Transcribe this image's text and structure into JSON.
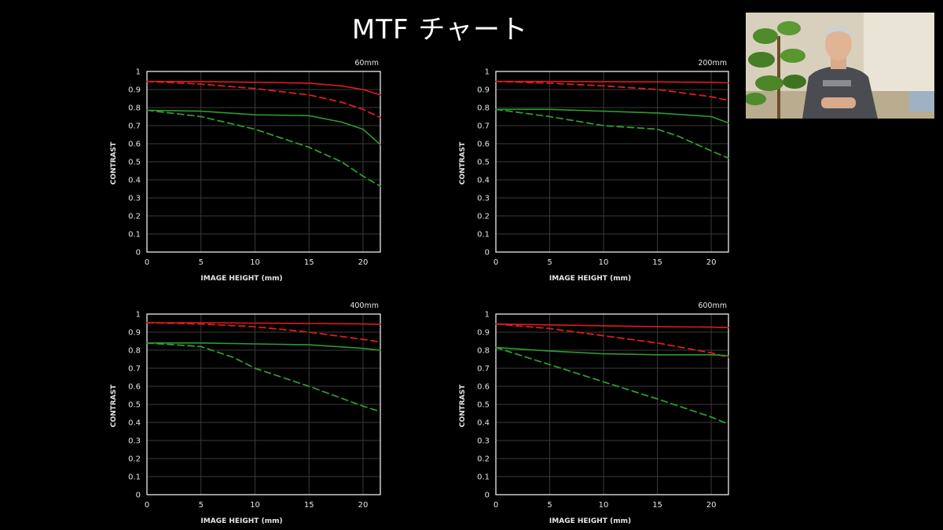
{
  "title": "MTF チャート",
  "colors": {
    "sagittal": "#e01b1b",
    "meridional": "#2e9a2e",
    "grid": "#3a3a3a",
    "axis": "#ffffff",
    "background": "#000000"
  },
  "presenter_video": {
    "label": "presenter webcam inset"
  },
  "chart_data": [
    {
      "type": "line",
      "title": "60mm",
      "xlabel": "IMAGE HEIGHT (mm)",
      "ylabel": "CONTRAST",
      "xlim": [
        0,
        21.6
      ],
      "ylim": [
        0,
        1
      ],
      "xticks": [
        "0",
        "5",
        "10",
        "15",
        "20"
      ],
      "yticks": [
        "0",
        "0.1",
        "0.2",
        "0.3",
        "0.4",
        "0.5",
        "0.6",
        "0.7",
        "0.8",
        "0.9",
        "1"
      ],
      "grid": true,
      "series": [
        {
          "color": "red",
          "dash": false,
          "x": [
            0,
            5,
            10,
            15,
            18,
            20,
            21.6
          ],
          "y": [
            0.945,
            0.944,
            0.94,
            0.935,
            0.92,
            0.9,
            0.87
          ]
        },
        {
          "color": "red",
          "dash": true,
          "x": [
            0,
            5,
            10,
            15,
            18,
            20,
            21.6
          ],
          "y": [
            0.945,
            0.93,
            0.905,
            0.87,
            0.83,
            0.79,
            0.745
          ]
        },
        {
          "color": "green",
          "dash": false,
          "x": [
            0,
            5,
            10,
            15,
            18,
            20,
            21.6
          ],
          "y": [
            0.785,
            0.78,
            0.76,
            0.755,
            0.72,
            0.68,
            0.595
          ]
        },
        {
          "color": "green",
          "dash": true,
          "x": [
            0,
            5,
            10,
            15,
            18,
            20,
            21.6
          ],
          "y": [
            0.785,
            0.75,
            0.68,
            0.58,
            0.5,
            0.42,
            0.365
          ]
        }
      ]
    },
    {
      "type": "line",
      "title": "200mm",
      "xlabel": "IMAGE HEIGHT (mm)",
      "ylabel": "CONTRAST",
      "xlim": [
        0,
        21.6
      ],
      "ylim": [
        0,
        1
      ],
      "xticks": [
        "0",
        "5",
        "10",
        "15",
        "20"
      ],
      "yticks": [
        "0",
        "0.1",
        "0.2",
        "0.3",
        "0.4",
        "0.5",
        "0.6",
        "0.7",
        "0.8",
        "0.9",
        "1"
      ],
      "grid": true,
      "series": [
        {
          "color": "red",
          "dash": false,
          "x": [
            0,
            5,
            10,
            15,
            20,
            21.6
          ],
          "y": [
            0.945,
            0.945,
            0.943,
            0.942,
            0.94,
            0.937
          ]
        },
        {
          "color": "red",
          "dash": true,
          "x": [
            0,
            5,
            10,
            15,
            20,
            21.6
          ],
          "y": [
            0.945,
            0.935,
            0.92,
            0.9,
            0.86,
            0.84
          ]
        },
        {
          "color": "green",
          "dash": false,
          "x": [
            0,
            5,
            10,
            15,
            20,
            21.6
          ],
          "y": [
            0.79,
            0.79,
            0.78,
            0.77,
            0.75,
            0.715
          ]
        },
        {
          "color": "green",
          "dash": true,
          "x": [
            0,
            5,
            10,
            15,
            17,
            20,
            21.6
          ],
          "y": [
            0.79,
            0.75,
            0.7,
            0.68,
            0.64,
            0.56,
            0.52
          ]
        }
      ]
    },
    {
      "type": "line",
      "title": "400mm",
      "xlabel": "IMAGE HEIGHT (mm)",
      "ylabel": "CONTRAST",
      "xlim": [
        0,
        21.6
      ],
      "ylim": [
        0,
        1
      ],
      "xticks": [
        "0",
        "5",
        "10",
        "15",
        "20"
      ],
      "yticks": [
        "0",
        "0.1",
        "0.2",
        "0.3",
        "0.4",
        "0.5",
        "0.6",
        "0.7",
        "0.8",
        "0.9",
        "1"
      ],
      "grid": true,
      "series": [
        {
          "color": "red",
          "dash": false,
          "x": [
            0,
            5,
            10,
            15,
            20,
            21.6
          ],
          "y": [
            0.952,
            0.952,
            0.95,
            0.948,
            0.945,
            0.943
          ]
        },
        {
          "color": "red",
          "dash": true,
          "x": [
            0,
            5,
            10,
            15,
            20,
            21.6
          ],
          "y": [
            0.952,
            0.945,
            0.93,
            0.9,
            0.86,
            0.845
          ]
        },
        {
          "color": "green",
          "dash": false,
          "x": [
            0,
            5,
            10,
            15,
            20,
            21.6
          ],
          "y": [
            0.84,
            0.84,
            0.835,
            0.83,
            0.81,
            0.8
          ]
        },
        {
          "color": "green",
          "dash": true,
          "x": [
            0,
            5,
            8,
            10,
            15,
            20,
            21.6
          ],
          "y": [
            0.84,
            0.82,
            0.76,
            0.7,
            0.6,
            0.49,
            0.46
          ]
        }
      ]
    },
    {
      "type": "line",
      "title": "600mm",
      "xlabel": "IMAGE HEIGHT (mm)",
      "ylabel": "CONTRAST",
      "xlim": [
        0,
        21.6
      ],
      "ylim": [
        0,
        1
      ],
      "xticks": [
        "0",
        "5",
        "10",
        "15",
        "20"
      ],
      "yticks": [
        "0",
        "0.1",
        "0.2",
        "0.3",
        "0.4",
        "0.5",
        "0.6",
        "0.7",
        "0.8",
        "0.9",
        "1"
      ],
      "grid": true,
      "series": [
        {
          "color": "red",
          "dash": false,
          "x": [
            0,
            5,
            10,
            15,
            20,
            21.6
          ],
          "y": [
            0.945,
            0.94,
            0.935,
            0.93,
            0.928,
            0.925
          ]
        },
        {
          "color": "red",
          "dash": true,
          "x": [
            0,
            5,
            10,
            15,
            20,
            21.6
          ],
          "y": [
            0.945,
            0.92,
            0.88,
            0.84,
            0.785,
            0.76
          ]
        },
        {
          "color": "green",
          "dash": false,
          "x": [
            0,
            5,
            10,
            15,
            20,
            21.6
          ],
          "y": [
            0.815,
            0.795,
            0.78,
            0.775,
            0.775,
            0.77
          ]
        },
        {
          "color": "green",
          "dash": true,
          "x": [
            0,
            5,
            10,
            15,
            20,
            21.6
          ],
          "y": [
            0.815,
            0.72,
            0.625,
            0.53,
            0.43,
            0.39
          ]
        }
      ]
    }
  ]
}
